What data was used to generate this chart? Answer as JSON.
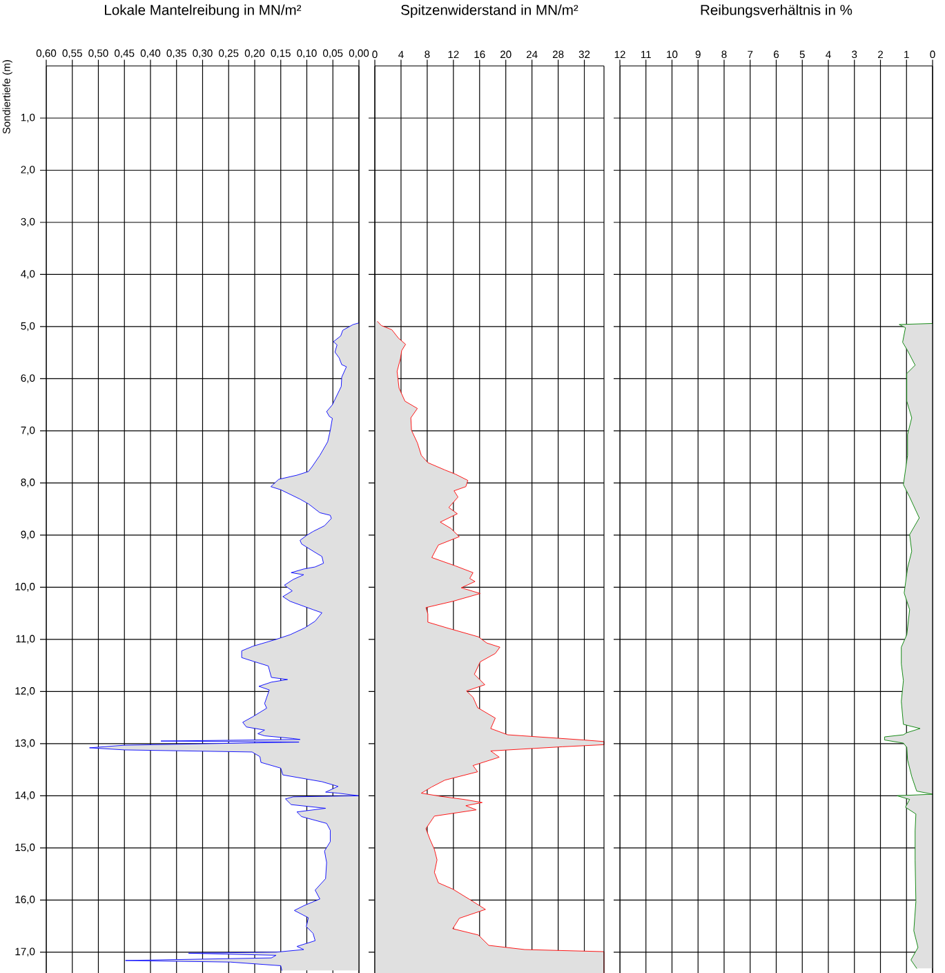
{
  "chart_data": [
    {
      "type": "area",
      "orientation": "horizontal",
      "title": "Lokale Mantelreibung in MN/m²",
      "ylabel": "Sondiertiefe (m)",
      "color": "#0000ff",
      "grid": true,
      "xlim": [
        0.6,
        0
      ],
      "ylim": [
        17.4,
        0
      ],
      "xticks": [
        {
          "value": 0.6,
          "label": "0,60"
        },
        {
          "value": 0.55,
          "label": "0,55"
        },
        {
          "value": 0.5,
          "label": "0,50"
        },
        {
          "value": 0.45,
          "label": "0,45"
        },
        {
          "value": 0.4,
          "label": "0,40"
        },
        {
          "value": 0.35,
          "label": "0,35"
        },
        {
          "value": 0.3,
          "label": "0,30"
        },
        {
          "value": 0.25,
          "label": "0,25"
        },
        {
          "value": 0.2,
          "label": "0,20"
        },
        {
          "value": 0.15,
          "label": "0,15"
        },
        {
          "value": 0.1,
          "label": "0,10"
        },
        {
          "value": 0.05,
          "label": "0,05"
        },
        {
          "value": 0,
          "label": "0,00"
        }
      ],
      "yticks": [
        {
          "value": 1,
          "label": "1,0"
        },
        {
          "value": 2,
          "label": "2,0"
        },
        {
          "value": 3,
          "label": "3,0"
        },
        {
          "value": 4,
          "label": "4,0"
        },
        {
          "value": 5,
          "label": "5,0"
        },
        {
          "value": 6,
          "label": "6,0"
        },
        {
          "value": 7,
          "label": "7,0"
        },
        {
          "value": 8,
          "label": "8,0"
        },
        {
          "value": 9,
          "label": "9,0"
        },
        {
          "value": 10,
          "label": "10,0"
        },
        {
          "value": 11,
          "label": "11,0"
        },
        {
          "value": 12,
          "label": "12,0"
        },
        {
          "value": 13,
          "label": "13,0"
        },
        {
          "value": 14,
          "label": "14,0"
        },
        {
          "value": 15,
          "label": "15,0"
        },
        {
          "value": 16,
          "label": "16,0"
        },
        {
          "value": 17,
          "label": "17,0"
        }
      ],
      "x": [
        4.93,
        4.96,
        5.07,
        5.18,
        5.29,
        5.35,
        5.49,
        5.6,
        5.73,
        5.77,
        5.97,
        6.15,
        6.5,
        6.63,
        6.72,
        6.76,
        6.99,
        7.21,
        7.47,
        7.69,
        7.78,
        7.85,
        7.93,
        8.07,
        8.13,
        8.31,
        8.4,
        8.57,
        8.62,
        8.68,
        8.82,
        8.93,
        9.01,
        9.1,
        9.17,
        9.32,
        9.41,
        9.54,
        9.61,
        9.65,
        9.72,
        9.76,
        9.85,
        9.96,
        10.07,
        10.18,
        10.27,
        10.43,
        10.49,
        10.65,
        10.78,
        10.91,
        11.0,
        11.13,
        11.22,
        11.35,
        11.42,
        11.51,
        11.73,
        11.77,
        11.82,
        11.9,
        11.97,
        12.23,
        12.32,
        12.48,
        12.59,
        12.68,
        12.74,
        12.81,
        12.85,
        12.9,
        12.92,
        12.95,
        12.97,
        13.03,
        13.08,
        13.12,
        13.16,
        13.25,
        13.36,
        13.47,
        13.6,
        13.73,
        13.82,
        13.93,
        13.95,
        14.0,
        14.02,
        14.06,
        14.17,
        14.24,
        14.31,
        14.4,
        14.53,
        14.66,
        14.88,
        15.06,
        15.28,
        15.59,
        15.81,
        15.98,
        16.11,
        16.2,
        16.34,
        16.51,
        16.64,
        16.78,
        16.89,
        16.95,
        17.0,
        17.02,
        17.06,
        17.11,
        17.16,
        17.19,
        17.26,
        17.35
      ],
      "values": [
        0.0,
        0.011,
        0.031,
        0.035,
        0.049,
        0.042,
        0.046,
        0.038,
        0.033,
        0.024,
        0.033,
        0.034,
        0.051,
        0.062,
        0.057,
        0.051,
        0.055,
        0.06,
        0.075,
        0.09,
        0.097,
        0.119,
        0.154,
        0.169,
        0.15,
        0.113,
        0.097,
        0.075,
        0.055,
        0.053,
        0.066,
        0.088,
        0.101,
        0.113,
        0.11,
        0.086,
        0.071,
        0.068,
        0.084,
        0.106,
        0.13,
        0.106,
        0.126,
        0.143,
        0.128,
        0.146,
        0.132,
        0.088,
        0.071,
        0.084,
        0.104,
        0.132,
        0.159,
        0.203,
        0.225,
        0.225,
        0.203,
        0.174,
        0.168,
        0.137,
        0.168,
        0.192,
        0.172,
        0.181,
        0.177,
        0.203,
        0.223,
        0.216,
        0.181,
        0.194,
        0.181,
        0.128,
        0.113,
        0.38,
        0.115,
        0.45,
        0.517,
        0.45,
        0.205,
        0.19,
        0.188,
        0.15,
        0.146,
        0.071,
        0.04,
        0.064,
        0.04,
        0.0,
        0.126,
        0.141,
        0.13,
        0.064,
        0.119,
        0.11,
        0.062,
        0.055,
        0.055,
        0.066,
        0.062,
        0.064,
        0.084,
        0.075,
        0.106,
        0.124,
        0.097,
        0.101,
        0.088,
        0.084,
        0.119,
        0.106,
        0.159,
        0.327,
        0.159,
        0.168,
        0.448,
        0.247,
        0.15,
        0.148
      ]
    },
    {
      "type": "area",
      "orientation": "horizontal",
      "title": "Spitzenwiderstand in MN/m²",
      "color": "#ff0000",
      "grid": true,
      "tick_labels": "x",
      "xlim": [
        0,
        35
      ],
      "ylim": [
        17.4,
        0
      ],
      "xticks": [
        0,
        4,
        8,
        12,
        16,
        20,
        24,
        28,
        32
      ],
      "yticks": [
        1,
        2,
        3,
        4,
        5,
        6,
        7,
        8,
        9,
        10,
        11,
        12,
        13,
        14,
        15,
        16,
        17
      ],
      "x": [
        4.9,
        4.98,
        5.06,
        5.22,
        5.34,
        5.46,
        5.62,
        5.86,
        6.18,
        6.43,
        6.57,
        6.75,
        6.99,
        7.23,
        7.47,
        7.61,
        7.75,
        7.83,
        7.95,
        8.07,
        8.15,
        8.27,
        8.47,
        8.59,
        8.75,
        8.87,
        9.03,
        9.19,
        9.43,
        9.59,
        9.72,
        9.83,
        9.89,
        10.01,
        10.12,
        10.27,
        10.39,
        10.51,
        10.67,
        10.79,
        10.95,
        11.07,
        11.15,
        11.27,
        11.43,
        11.67,
        11.87,
        11.99,
        12.11,
        12.31,
        12.51,
        12.71,
        12.83,
        12.93,
        12.96,
        13.02,
        13.06,
        13.14,
        13.26,
        13.42,
        13.54,
        13.7,
        13.83,
        13.95,
        14.01,
        14.07,
        14.13,
        14.19,
        14.27,
        14.39,
        14.63,
        14.83,
        15.03,
        15.23,
        15.47,
        15.67,
        15.79,
        15.99,
        16.18,
        16.35,
        16.55,
        16.67,
        16.87,
        16.95,
        16.99,
        17.4
      ],
      "values": [
        0.4,
        1.0,
        2.6,
        3.6,
        4.7,
        4.1,
        3.9,
        3.4,
        3.7,
        4.6,
        6.5,
        5.5,
        5.6,
        6.5,
        7.1,
        8.1,
        10.7,
        12.3,
        14.2,
        13.9,
        12.1,
        12.7,
        11.3,
        12.6,
        10.0,
        11.6,
        12.9,
        9.7,
        8.7,
        12.3,
        15.0,
        14.5,
        15.3,
        13.2,
        16.1,
        11.9,
        7.8,
        8.1,
        8.1,
        11.3,
        15.8,
        17.1,
        19.1,
        18.4,
        16.1,
        15.2,
        16.8,
        14.0,
        15.0,
        15.7,
        18.4,
        17.7,
        20.3,
        31.9,
        35,
        35,
        28.6,
        17.7,
        19.0,
        15.0,
        15.7,
        10.7,
        8.7,
        7.1,
        10.0,
        13.6,
        16.4,
        13.9,
        15.5,
        9.1,
        7.8,
        8.4,
        9.1,
        9.5,
        9.1,
        9.7,
        11.9,
        14.5,
        16.9,
        12.9,
        11.9,
        15.8,
        17.4,
        22.9,
        35,
        35
      ]
    },
    {
      "type": "area",
      "orientation": "horizontal",
      "title": "Reibungsverhältnis in %",
      "color": "#008000",
      "grid": true,
      "tick_labels": "x",
      "xlim": [
        12,
        0
      ],
      "ylim": [
        17.4,
        0
      ],
      "xticks": [
        12,
        11,
        10,
        9,
        8,
        7,
        6,
        5,
        4,
        3,
        2,
        1,
        0
      ],
      "yticks": [
        1,
        2,
        3,
        4,
        5,
        6,
        7,
        8,
        9,
        10,
        11,
        12,
        13,
        14,
        15,
        16,
        17
      ],
      "x": [
        4.94,
        4.96,
        5.02,
        5.3,
        5.46,
        5.74,
        5.9,
        6.43,
        6.75,
        7.07,
        7.47,
        8.03,
        8.27,
        8.67,
        8.99,
        9.31,
        9.63,
        10.11,
        10.43,
        10.91,
        11.15,
        11.47,
        11.79,
        12.19,
        12.63,
        12.71,
        12.79,
        12.83,
        12.87,
        12.93,
        12.99,
        13.07,
        13.31,
        13.63,
        13.91,
        13.97,
        14.0,
        14.07,
        14.22,
        14.35,
        14.67,
        15.23,
        16.03,
        16.59,
        16.91,
        17.15,
        17.31
      ],
      "values": [
        0,
        1.28,
        1.04,
        1.15,
        0.96,
        0.67,
        0.99,
        0.99,
        0.8,
        0.96,
        0.96,
        1.12,
        0.88,
        0.51,
        0.88,
        0.8,
        0.96,
        1.09,
        0.88,
        0.99,
        1.2,
        1.2,
        1.12,
        1.2,
        1.12,
        0.48,
        0.99,
        1.12,
        1.84,
        1.84,
        1.12,
        0.99,
        0.96,
        0.8,
        0.61,
        0,
        1.36,
        0.88,
        1.04,
        0.64,
        0.67,
        0.67,
        0.64,
        0.72,
        0.56,
        0.83,
        0.61
      ]
    }
  ]
}
